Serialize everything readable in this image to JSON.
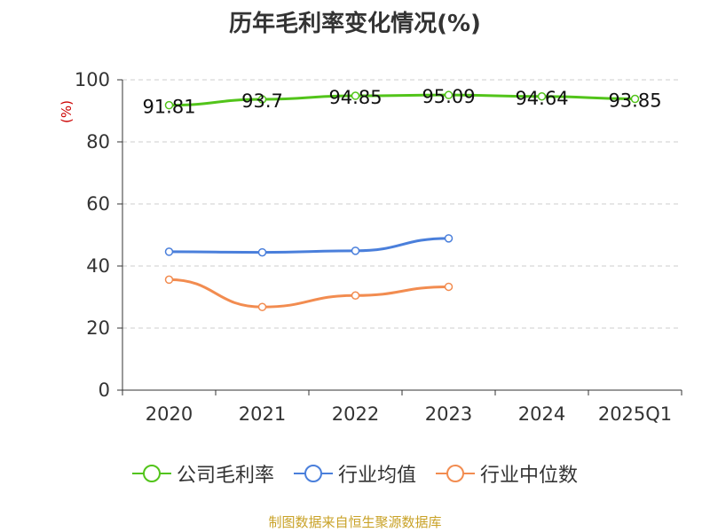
{
  "title": "历年毛利率变化情况(%)",
  "source": "制图数据来自恒生聚源数据库",
  "chart_data": {
    "type": "line",
    "categories": [
      "2020",
      "2021",
      "2022",
      "2023",
      "2024",
      "2025Q1"
    ],
    "ylabel": "(%)",
    "ylim": [
      0,
      100
    ],
    "yticks": [
      "0",
      "20",
      "40",
      "60",
      "80",
      "100"
    ],
    "grid": true,
    "legend_position": "bottom",
    "series": [
      {
        "name": "公司毛利率",
        "color": "#52c41a",
        "values": [
          91.81,
          93.7,
          94.85,
          95.09,
          94.64,
          93.85
        ],
        "labels": [
          "91.81",
          "93.7",
          "94.85",
          "95.09",
          "94.64",
          "93.85"
        ]
      },
      {
        "name": "行业均值",
        "color": "#4a7fdb",
        "values": [
          44.6,
          44.4,
          44.9,
          48.9,
          null,
          null
        ]
      },
      {
        "name": "行业中位数",
        "color": "#f28c50",
        "values": [
          35.6,
          26.8,
          30.5,
          33.3,
          null,
          null
        ]
      }
    ]
  }
}
